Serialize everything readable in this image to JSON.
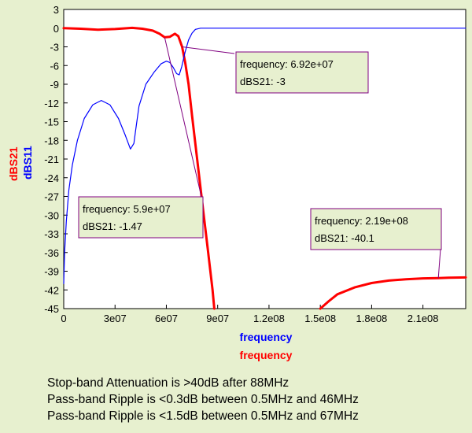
{
  "chart_data": {
    "type": "line",
    "xlabels": [
      "frequency",
      "frequency"
    ],
    "ylabels": [
      "dBS21",
      "dBS11"
    ],
    "xlim": [
      0,
      235000000
    ],
    "ylim": [
      -45,
      3
    ],
    "x_ticks": [
      0,
      30000000,
      60000000,
      90000000,
      120000000,
      150000000,
      180000000,
      210000000
    ],
    "x_tick_labels": [
      "0",
      "3e07",
      "6e07",
      "9e07",
      "1.2e08",
      "1.5e08",
      "1.8e08",
      "2.1e08"
    ],
    "y_ticks": [
      3,
      0,
      -3,
      -6,
      -9,
      -12,
      -15,
      -18,
      -21,
      -24,
      -27,
      -30,
      -33,
      -36,
      -39,
      -42,
      -45
    ],
    "y_tick_labels": [
      "3",
      "0",
      "-3",
      "-6",
      "-9",
      "-12",
      "-15",
      "-18",
      "-21",
      "-24",
      "-27",
      "-30",
      "-33",
      "-36",
      "-39",
      "-42",
      "-45"
    ],
    "grid": false,
    "series": [
      {
        "name": "dBS21",
        "color": "#ff0000",
        "x": [
          0,
          10000000,
          20000000,
          30000000,
          40000000,
          46000000,
          52000000,
          56000000,
          59000000,
          62000000,
          65000000,
          67000000,
          69200000,
          71000000,
          73000000,
          75000000,
          78000000,
          81000000,
          84000000,
          87000000,
          88000000
        ],
        "y": [
          0,
          -0.1,
          -0.25,
          -0.15,
          0.05,
          -0.1,
          -0.4,
          -0.9,
          -1.47,
          -1.4,
          -0.9,
          -1.3,
          -3,
          -5.5,
          -9,
          -14,
          -21,
          -28,
          -35,
          -42,
          -45
        ]
      },
      {
        "name": "dBS21",
        "color": "#ff0000",
        "x": [
          150000000,
          155000000,
          160000000,
          170000000,
          180000000,
          190000000,
          200000000,
          210000000,
          219000000,
          225000000,
          235000000
        ],
        "y": [
          -45,
          -43.8,
          -42.7,
          -41.6,
          -40.9,
          -40.5,
          -40.3,
          -40.15,
          -40.1,
          -40.05,
          -40
        ]
      },
      {
        "name": "dBS11",
        "color": "#0000ff",
        "x": [
          0,
          500000,
          1500000,
          3000000,
          5000000,
          8000000,
          12000000,
          17000000,
          22000000,
          27000000,
          32000000,
          36000000,
          39000000,
          41000000,
          42000000,
          44000000,
          48000000,
          53000000,
          57000000,
          60000000,
          62000000,
          64000000,
          66000000,
          67500000,
          69000000,
          71000000,
          73000000,
          75000000,
          77000000,
          80000000,
          85000000,
          90000000,
          235000000
        ],
        "y": [
          -41,
          -36,
          -31,
          -26,
          -22,
          -18,
          -14.5,
          -12.3,
          -11.6,
          -12.3,
          -14.5,
          -17.2,
          -19.4,
          -18.5,
          -16.5,
          -12.5,
          -9,
          -7,
          -5.7,
          -5.3,
          -5.5,
          -6.3,
          -7.3,
          -7.5,
          -6.2,
          -3.8,
          -1.9,
          -0.8,
          -0.2,
          0,
          0,
          0,
          0
        ]
      }
    ],
    "annotations": [
      {
        "freq_label": "frequency: 6.92e+07",
        "value_label": "dBS21: -3",
        "point_x": 69200000,
        "point_y": -3
      },
      {
        "freq_label": "frequency: 5.9e+07",
        "value_label": "dBS21: -1.47",
        "point_x": 59000000,
        "point_y": -1.47
      },
      {
        "freq_label": "frequency: 2.19e+08",
        "value_label": "dBS21: -40.1",
        "point_x": 219000000,
        "point_y": -40.1
      }
    ]
  },
  "notes": [
    "Stop-band Attenuation is >40dB after 88MHz",
    "Pass-band Ripple is <0.3dB between 0.5MHz and 46MHz",
    "Pass-band Ripple is <1.5dB between 0.5MHz and 67MHz"
  ],
  "colors": {
    "background": "#e7f0cf",
    "plot_background": "#ffffff",
    "s21": "#ff0000",
    "s11": "#0000ff",
    "annotation_border": "#800080"
  }
}
